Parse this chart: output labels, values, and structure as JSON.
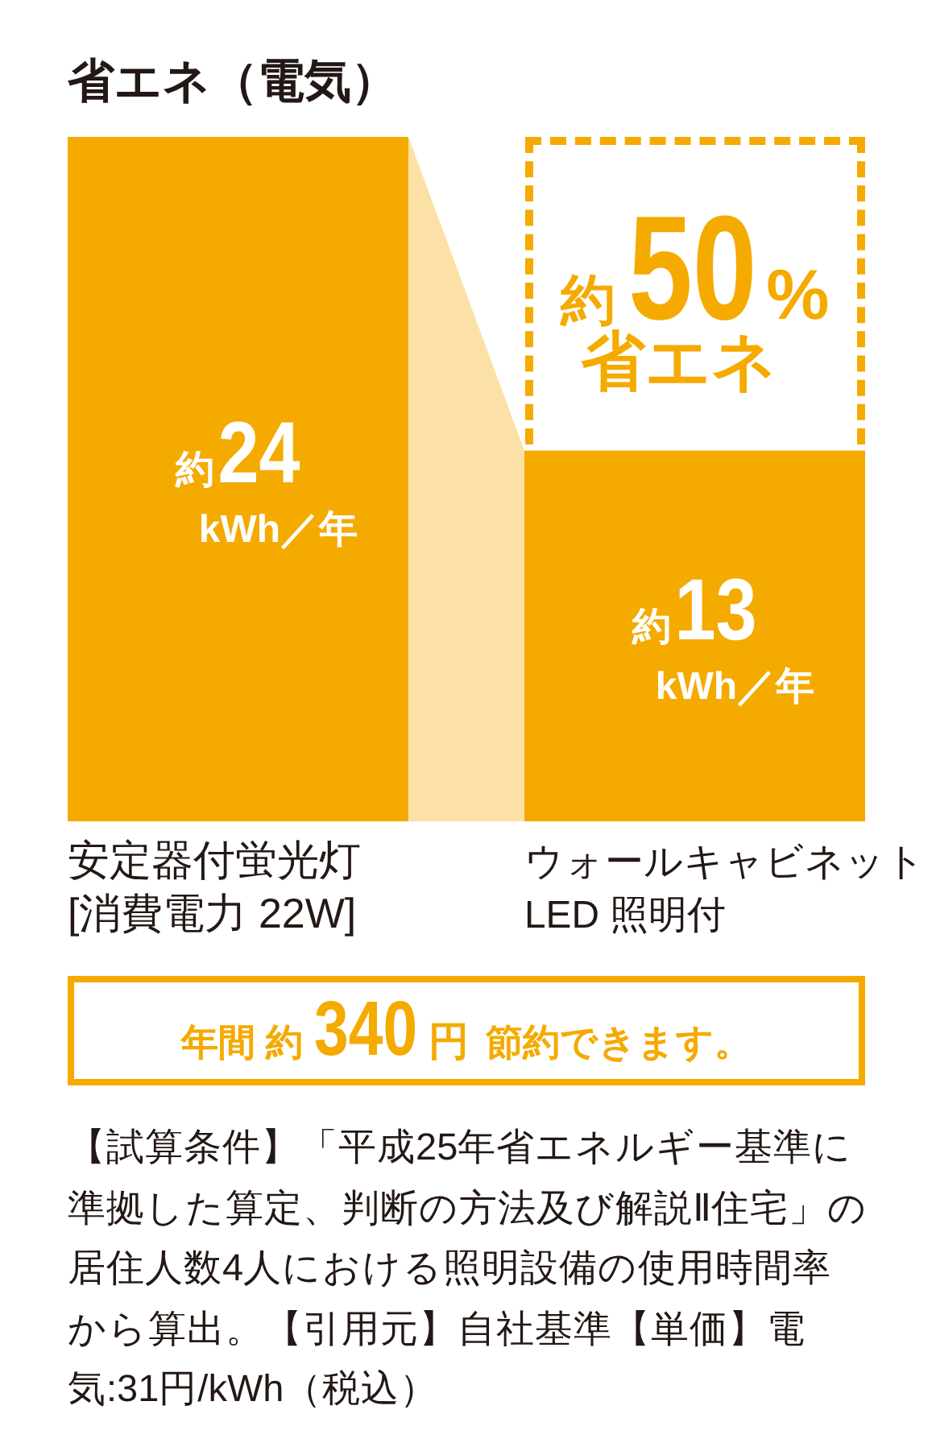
{
  "chart_data": {
    "type": "bar",
    "title": "省エネ（電気）",
    "categories": [
      "安定器付蛍光灯\n[消費電力 22W]",
      "ウォールキャビネット\nLED 照明付"
    ],
    "values": [
      24,
      13
    ],
    "color": "#f5aa00",
    "value_labels": [
      "約24 kWh／年",
      "約13 kWh／年"
    ],
    "annotations": [
      "約50% 省エネ",
      "年間 約340円 節約できます。",
      "【試算条件】「平成25年省エネルギー基準に準拠した算定、判断の方法及び解説Ⅱ住宅」の居住人数4人における照明設備の使用時間率から算出。【引用元】自社基準【単価】電気:31円/kWh（税込）"
    ]
  }
}
